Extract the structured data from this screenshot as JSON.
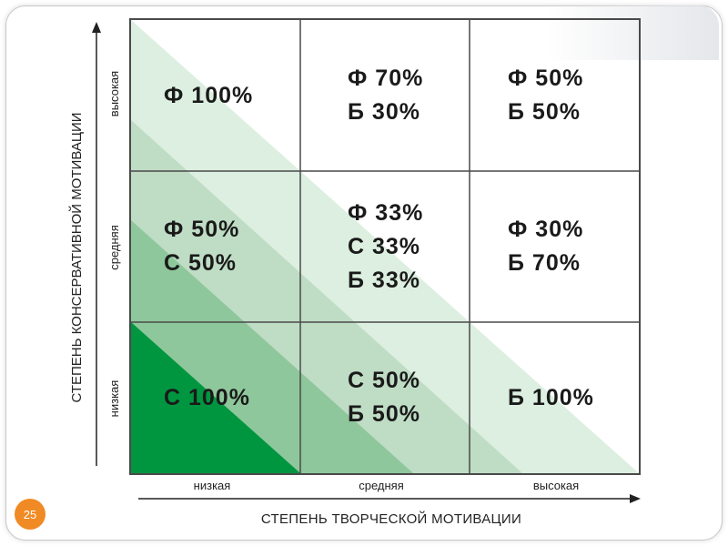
{
  "slide": {
    "page_number": "25"
  },
  "axes": {
    "y_title": "СТЕПЕНЬ КОНСЕРВАТИВНОЙ МОТИВАЦИИ",
    "x_title": "СТЕПЕНЬ ТВОРЧЕСКОЙ МОТИВАЦИИ",
    "y_ticks": [
      "высокая",
      "средняя",
      "низкая"
    ],
    "x_ticks": [
      "низкая",
      "средняя",
      "высокая"
    ]
  },
  "cells": {
    "r0c0": [
      "Ф 100%"
    ],
    "r0c1": [
      "Ф 70%",
      "Б 30%"
    ],
    "r0c2": [
      "Ф 50%",
      "Б 50%"
    ],
    "r1c0": [
      "Ф 50%",
      "С 50%"
    ],
    "r1c1": [
      "Ф 33%",
      "С 33%",
      "Б 33%"
    ],
    "r1c2": [
      "Ф 30%",
      "Б 70%"
    ],
    "r2c0": [
      "С 100%"
    ],
    "r2c1": [
      "С 50%",
      "Б 50%"
    ],
    "r2c2": [
      "Б 100%"
    ]
  },
  "colors": {
    "band_lightest": "#dcefe0",
    "band_light": "#bfdcc5",
    "band_mid": "#8ec79b",
    "band_dark": "#009640",
    "grid_line": "#4a4a4a",
    "badge": "#f08a24"
  }
}
